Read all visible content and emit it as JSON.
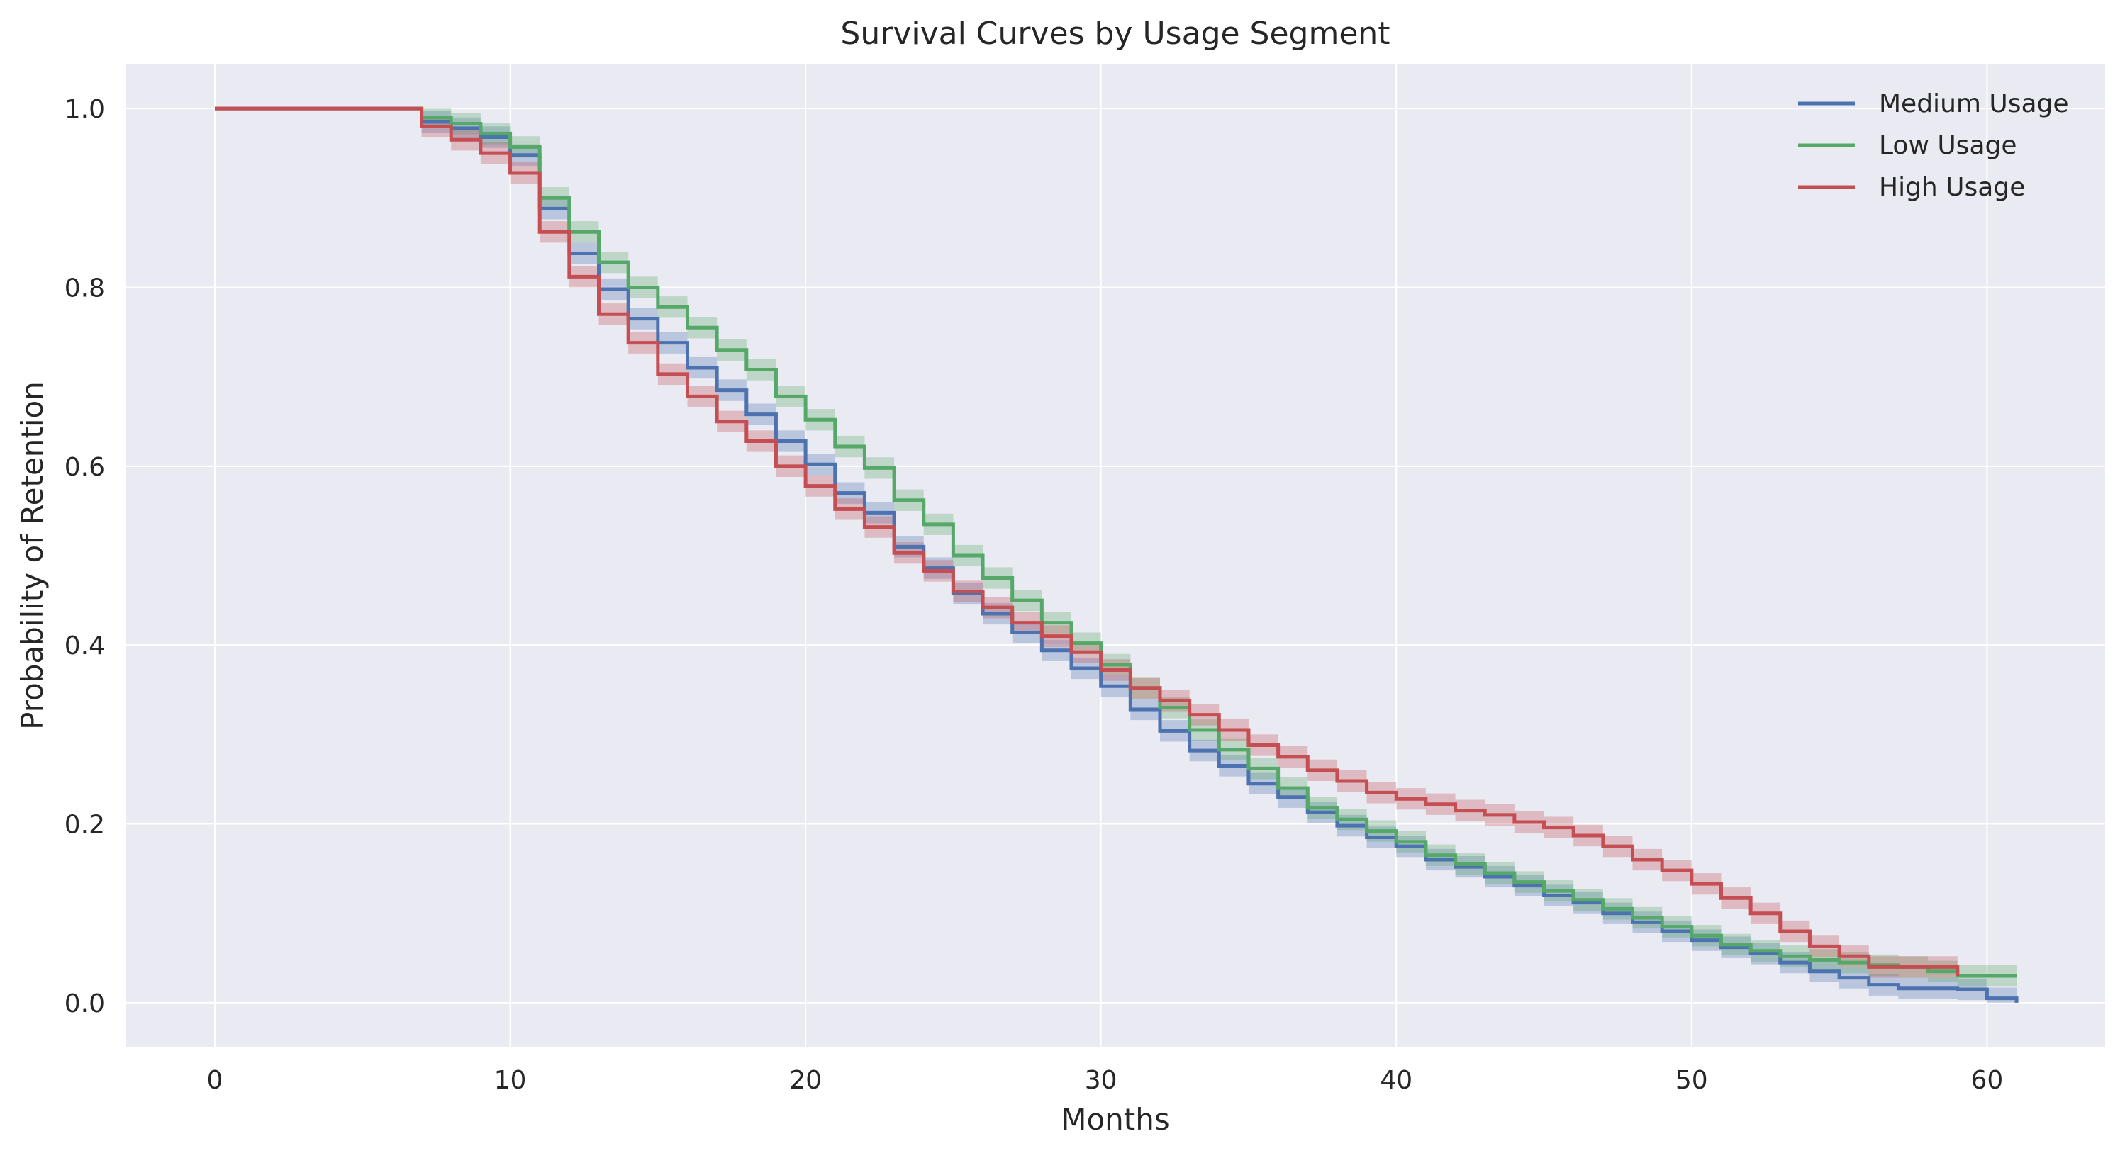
{
  "chart_data": {
    "type": "line",
    "title": "Survival Curves by Usage Segment",
    "xlabel": "Months",
    "ylabel": "Probability of Retention",
    "xlim": [
      -3,
      64
    ],
    "ylim": [
      -0.05,
      1.05
    ],
    "xticks": [
      0,
      10,
      20,
      30,
      40,
      50,
      60
    ],
    "yticks": [
      0.0,
      0.2,
      0.4,
      0.6,
      0.8,
      1.0
    ],
    "xtick_labels": [
      "0",
      "10",
      "20",
      "30",
      "40",
      "50",
      "60"
    ],
    "ytick_labels": [
      "0.0",
      "0.2",
      "0.4",
      "0.6",
      "0.8",
      "1.0"
    ],
    "grid": true,
    "legend_position": "top-right",
    "step": "post",
    "band_halfwidth": 0.012,
    "background": "#eaeaf2",
    "series": [
      {
        "name": "Medium Usage",
        "color": "#4c72b0",
        "x": [
          0,
          7,
          8,
          9,
          10,
          11,
          12,
          13,
          14,
          15,
          16,
          17,
          18,
          19,
          20,
          21,
          22,
          23,
          24,
          25,
          26,
          27,
          28,
          29,
          30,
          31,
          32,
          33,
          34,
          35,
          36,
          37,
          38,
          39,
          40,
          41,
          42,
          43,
          44,
          45,
          46,
          47,
          48,
          49,
          50,
          51,
          52,
          53,
          54,
          55,
          56,
          57,
          58,
          59,
          60,
          61
        ],
        "y": [
          1.0,
          0.985,
          0.978,
          0.968,
          0.948,
          0.888,
          0.838,
          0.798,
          0.765,
          0.738,
          0.71,
          0.685,
          0.658,
          0.628,
          0.602,
          0.57,
          0.548,
          0.51,
          0.486,
          0.458,
          0.435,
          0.414,
          0.394,
          0.374,
          0.354,
          0.328,
          0.304,
          0.282,
          0.265,
          0.245,
          0.23,
          0.213,
          0.198,
          0.185,
          0.175,
          0.16,
          0.152,
          0.141,
          0.131,
          0.12,
          0.112,
          0.1,
          0.09,
          0.08,
          0.07,
          0.062,
          0.055,
          0.045,
          0.035,
          0.028,
          0.02,
          0.016,
          0.016,
          0.015,
          0.005,
          0.0
        ]
      },
      {
        "name": "Low Usage",
        "color": "#55a868",
        "x": [
          0,
          7,
          8,
          9,
          10,
          11,
          12,
          13,
          14,
          15,
          16,
          17,
          18,
          19,
          20,
          21,
          22,
          23,
          24,
          25,
          26,
          27,
          28,
          29,
          30,
          31,
          32,
          33,
          34,
          35,
          36,
          37,
          38,
          39,
          40,
          41,
          42,
          43,
          44,
          45,
          46,
          47,
          48,
          49,
          50,
          51,
          52,
          53,
          54,
          55,
          56,
          57,
          58,
          59,
          60,
          61
        ],
        "y": [
          1.0,
          0.99,
          0.983,
          0.972,
          0.957,
          0.9,
          0.862,
          0.828,
          0.8,
          0.778,
          0.755,
          0.73,
          0.708,
          0.678,
          0.652,
          0.622,
          0.598,
          0.562,
          0.535,
          0.5,
          0.475,
          0.45,
          0.425,
          0.402,
          0.378,
          0.352,
          0.33,
          0.305,
          0.283,
          0.262,
          0.24,
          0.218,
          0.205,
          0.192,
          0.18,
          0.165,
          0.155,
          0.145,
          0.135,
          0.125,
          0.115,
          0.105,
          0.095,
          0.085,
          0.075,
          0.065,
          0.058,
          0.052,
          0.048,
          0.045,
          0.042,
          0.04,
          0.035,
          0.03,
          0.03,
          0.03
        ]
      },
      {
        "name": "High Usage",
        "color": "#c44e52",
        "x": [
          0,
          7,
          8,
          9,
          10,
          11,
          12,
          13,
          14,
          15,
          16,
          17,
          18,
          19,
          20,
          21,
          22,
          23,
          24,
          25,
          26,
          27,
          28,
          29,
          30,
          31,
          32,
          33,
          34,
          35,
          36,
          37,
          38,
          39,
          40,
          41,
          42,
          43,
          44,
          45,
          46,
          47,
          48,
          49,
          50,
          51,
          52,
          53,
          54,
          55,
          56,
          57,
          58,
          59
        ],
        "y": [
          1.0,
          0.98,
          0.965,
          0.95,
          0.928,
          0.862,
          0.812,
          0.77,
          0.738,
          0.703,
          0.678,
          0.65,
          0.628,
          0.6,
          0.578,
          0.552,
          0.532,
          0.503,
          0.483,
          0.46,
          0.442,
          0.425,
          0.41,
          0.392,
          0.372,
          0.352,
          0.338,
          0.322,
          0.305,
          0.288,
          0.275,
          0.26,
          0.248,
          0.235,
          0.228,
          0.222,
          0.215,
          0.21,
          0.202,
          0.196,
          0.187,
          0.175,
          0.16,
          0.148,
          0.133,
          0.117,
          0.1,
          0.08,
          0.063,
          0.052,
          0.04,
          0.04,
          0.04,
          0.03
        ]
      }
    ]
  }
}
